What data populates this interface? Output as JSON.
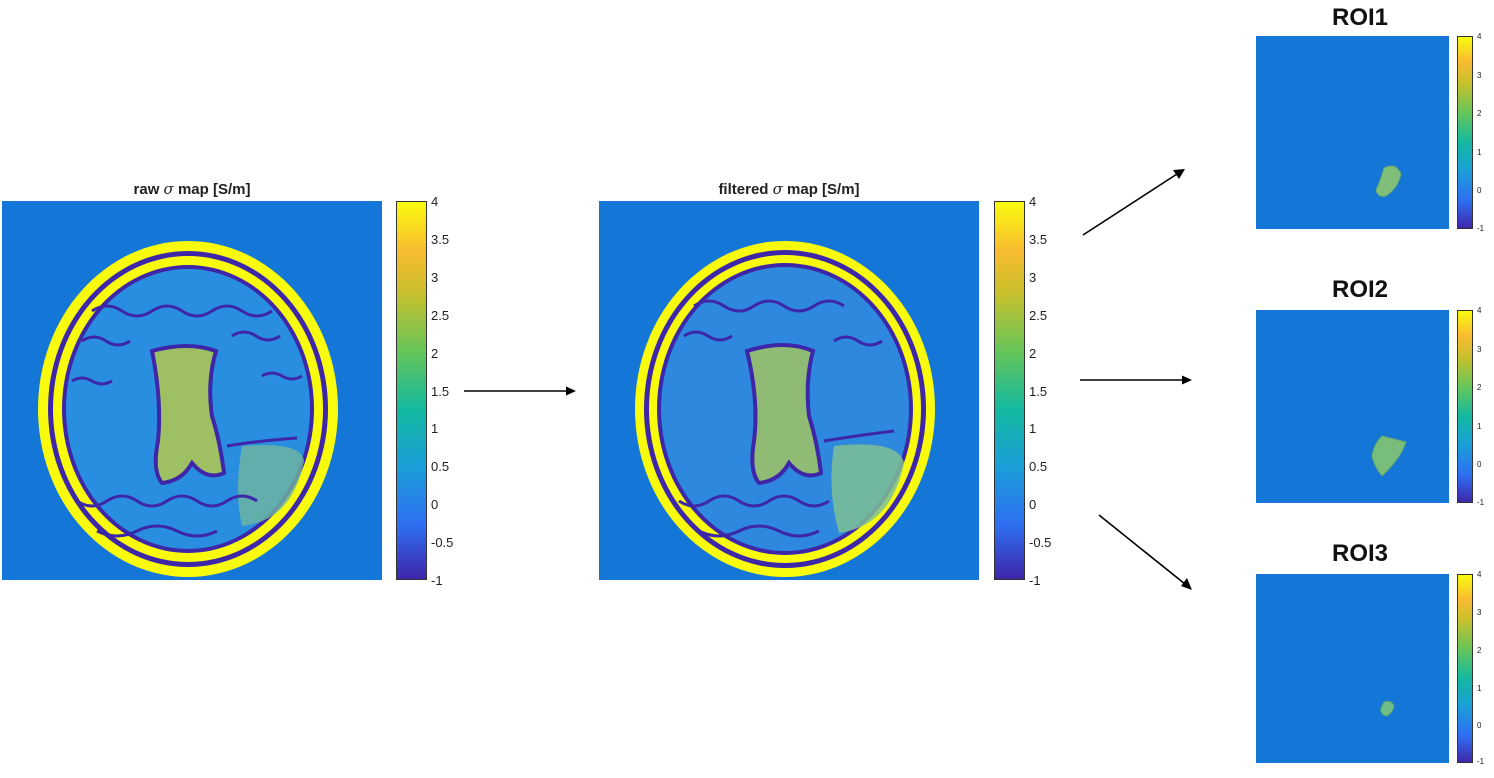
{
  "colors": {
    "background": "#1476d6",
    "bright": "#f9fb0e",
    "dark": "#3e26a8",
    "brain": "#2a8ee0"
  },
  "panels": [
    {
      "title_prefix": "raw ",
      "title_symbol": "σ",
      "title_suffix": " map [S/m]"
    },
    {
      "title_prefix": "filtered ",
      "title_symbol": "σ",
      "title_suffix": " map [S/m]"
    }
  ],
  "colorbar_ticks_large": [
    "4",
    "3.5",
    "3",
    "2.5",
    "2",
    "1.5",
    "1",
    "0.5",
    "0",
    "-0.5",
    "-1"
  ],
  "colorbar_ticks_small": [
    "4",
    "3",
    "2",
    "1",
    "0",
    "-1"
  ],
  "rois": [
    {
      "title": "ROI1"
    },
    {
      "title": "ROI2"
    },
    {
      "title": "ROI3"
    }
  ]
}
